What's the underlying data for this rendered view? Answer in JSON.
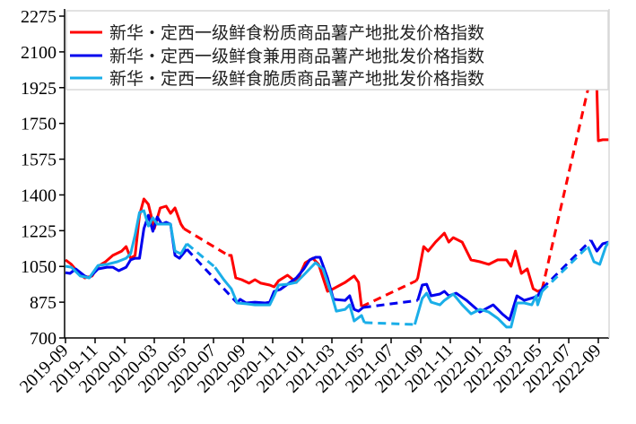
{
  "chart_data": {
    "type": "line",
    "title": "",
    "xlabel": "",
    "ylabel": "",
    "x_unit": "months since 2019-09",
    "xlim": [
      0,
      36.7
    ],
    "ylim": [
      700,
      2275
    ],
    "yticks": [
      700,
      875,
      1050,
      1225,
      1400,
      1575,
      1750,
      1925,
      2100,
      2275
    ],
    "xtick_labels": [
      "2019-09",
      "2019-11",
      "2020-01",
      "2020-03",
      "2020-05",
      "2020-07",
      "2020-09",
      "2020-11",
      "2021-01",
      "2021-03",
      "2021-05",
      "2021-07",
      "2021-09",
      "2021-11",
      "2022-01",
      "2022-03",
      "2022-05",
      "2022-07",
      "2022-09"
    ],
    "grid": false,
    "legend_position": "top",
    "dashed_note": "point triple [x, value, dashed]: dashed=1 means the segment from the previous point is dashed (missing data interpolation)",
    "series": [
      {
        "name": "新华・定西一级鲜食粉质商品薯产地批发价格指数",
        "color": "#ff0000",
        "points": [
          [
            0,
            1082,
            0
          ],
          [
            0.4,
            1060,
            0
          ],
          [
            0.9,
            1016,
            0
          ],
          [
            1.3,
            994,
            0
          ],
          [
            1.8,
            1003,
            0
          ],
          [
            2.2,
            1051,
            0
          ],
          [
            2.7,
            1073,
            0
          ],
          [
            3.2,
            1104,
            0
          ],
          [
            3.8,
            1125,
            0
          ],
          [
            4.1,
            1147,
            0
          ],
          [
            4.4,
            1090,
            0
          ],
          [
            4.7,
            1104,
            0
          ],
          [
            5.0,
            1300,
            0
          ],
          [
            5.3,
            1380,
            0
          ],
          [
            5.6,
            1354,
            0
          ],
          [
            6.0,
            1235,
            0
          ],
          [
            6.4,
            1336,
            0
          ],
          [
            6.8,
            1345,
            0
          ],
          [
            7.1,
            1310,
            0
          ],
          [
            7.4,
            1336,
            0
          ],
          [
            7.8,
            1257,
            0
          ],
          [
            8.0,
            1235,
            0
          ],
          [
            11.0,
            1104,
            1
          ],
          [
            11.2,
            1104,
            0
          ],
          [
            11.5,
            994,
            0
          ],
          [
            11.9,
            985,
            0
          ],
          [
            12.4,
            968,
            0
          ],
          [
            12.8,
            985,
            0
          ],
          [
            13.2,
            968,
            0
          ],
          [
            13.8,
            959,
            0
          ],
          [
            14.1,
            950,
            0
          ],
          [
            14.4,
            980,
            0
          ],
          [
            15.0,
            1007,
            0
          ],
          [
            15.6,
            972,
            0
          ],
          [
            16.2,
            1068,
            0
          ],
          [
            16.7,
            1090,
            0
          ],
          [
            17.1,
            1060,
            0
          ],
          [
            17.7,
            928,
            0
          ],
          [
            18.1,
            941,
            0
          ],
          [
            18.9,
            972,
            0
          ],
          [
            19.5,
            1003,
            0
          ],
          [
            19.8,
            972,
            0
          ],
          [
            20.0,
            853,
            0
          ],
          [
            23.7,
            980,
            1
          ],
          [
            23.8,
            994,
            0
          ],
          [
            24.2,
            1147,
            0
          ],
          [
            24.5,
            1125,
            0
          ],
          [
            25.0,
            1169,
            0
          ],
          [
            25.6,
            1213,
            0
          ],
          [
            25.9,
            1169,
            0
          ],
          [
            26.2,
            1191,
            0
          ],
          [
            26.8,
            1169,
            0
          ],
          [
            27.4,
            1082,
            0
          ],
          [
            28.0,
            1073,
            0
          ],
          [
            28.6,
            1060,
            0
          ],
          [
            29.2,
            1082,
            0
          ],
          [
            29.8,
            1082,
            0
          ],
          [
            30.1,
            1051,
            0
          ],
          [
            30.4,
            1125,
            0
          ],
          [
            30.8,
            1016,
            0
          ],
          [
            31.2,
            1038,
            0
          ],
          [
            31.6,
            941,
            0
          ],
          [
            31.9,
            928,
            0
          ],
          [
            32.2,
            937,
            0
          ],
          [
            35.6,
            2012,
            1
          ],
          [
            35.9,
            1915,
            0
          ],
          [
            36.0,
            1665,
            0
          ],
          [
            36.3,
            1670,
            0
          ],
          [
            36.7,
            1670,
            0
          ]
        ]
      },
      {
        "name": "新华・定西一级鲜食兼用商品薯产地批发价格指数",
        "color": "#0000ee",
        "points": [
          [
            0,
            1020,
            0
          ],
          [
            0.3,
            1016,
            0
          ],
          [
            0.7,
            1038,
            0
          ],
          [
            1.3,
            1003,
            0
          ],
          [
            1.6,
            994,
            0
          ],
          [
            2.2,
            1038,
            0
          ],
          [
            2.8,
            1046,
            0
          ],
          [
            3.2,
            1046,
            0
          ],
          [
            3.6,
            1029,
            0
          ],
          [
            4.1,
            1046,
            0
          ],
          [
            4.4,
            1082,
            0
          ],
          [
            4.7,
            1090,
            0
          ],
          [
            5.0,
            1090,
            0
          ],
          [
            5.3,
            1235,
            0
          ],
          [
            5.6,
            1300,
            0
          ],
          [
            5.9,
            1222,
            0
          ],
          [
            6.2,
            1292,
            0
          ],
          [
            6.5,
            1257,
            0
          ],
          [
            6.8,
            1266,
            0
          ],
          [
            7.1,
            1257,
            0
          ],
          [
            7.4,
            1104,
            0
          ],
          [
            7.7,
            1090,
            0
          ],
          [
            8.2,
            1134,
            0
          ],
          [
            11.6,
            871,
            1
          ],
          [
            11.8,
            889,
            0
          ],
          [
            12.2,
            871,
            0
          ],
          [
            12.8,
            875,
            0
          ],
          [
            13.5,
            871,
            0
          ],
          [
            13.8,
            875,
            0
          ],
          [
            14.1,
            928,
            0
          ],
          [
            14.5,
            937,
            0
          ],
          [
            15.0,
            963,
            0
          ],
          [
            15.6,
            994,
            0
          ],
          [
            16.1,
            1038,
            0
          ],
          [
            16.5,
            1082,
            0
          ],
          [
            16.9,
            1095,
            0
          ],
          [
            17.2,
            1095,
            0
          ],
          [
            17.7,
            994,
            0
          ],
          [
            18.1,
            889,
            0
          ],
          [
            18.9,
            884,
            0
          ],
          [
            19.2,
            906,
            0
          ],
          [
            19.5,
            840,
            0
          ],
          [
            19.8,
            831,
            0
          ],
          [
            20.1,
            849,
            0
          ],
          [
            23.8,
            884,
            1
          ],
          [
            24.1,
            959,
            0
          ],
          [
            24.4,
            963,
            0
          ],
          [
            24.7,
            906,
            0
          ],
          [
            25.3,
            915,
            0
          ],
          [
            25.6,
            928,
            0
          ],
          [
            25.9,
            906,
            0
          ],
          [
            26.4,
            919,
            0
          ],
          [
            27.1,
            884,
            0
          ],
          [
            28.0,
            827,
            0
          ],
          [
            28.9,
            862,
            0
          ],
          [
            29.5,
            818,
            0
          ],
          [
            30.0,
            788,
            0
          ],
          [
            30.5,
            906,
            0
          ],
          [
            31.0,
            884,
            0
          ],
          [
            31.6,
            897,
            0
          ],
          [
            31.9,
            906,
            0
          ],
          [
            32.2,
            941,
            0
          ],
          [
            35.5,
            1178,
            1
          ],
          [
            35.9,
            1125,
            0
          ],
          [
            36.3,
            1161,
            0
          ],
          [
            36.7,
            1169,
            0
          ]
        ]
      },
      {
        "name": "新华・定西一级鲜食脆质商品薯产地批发价格指数",
        "color": "#1aaee8",
        "points": [
          [
            0,
            1051,
            0
          ],
          [
            0.4,
            1046,
            0
          ],
          [
            1.0,
            1003,
            0
          ],
          [
            1.6,
            994,
            0
          ],
          [
            2.2,
            1055,
            0
          ],
          [
            2.8,
            1060,
            0
          ],
          [
            3.5,
            1073,
            0
          ],
          [
            4.1,
            1090,
            0
          ],
          [
            4.4,
            1112,
            0
          ],
          [
            4.7,
            1204,
            0
          ],
          [
            5.0,
            1314,
            0
          ],
          [
            5.3,
            1323,
            0
          ],
          [
            5.6,
            1248,
            0
          ],
          [
            5.9,
            1288,
            0
          ],
          [
            6.2,
            1257,
            0
          ],
          [
            6.5,
            1257,
            0
          ],
          [
            7.1,
            1257,
            0
          ],
          [
            7.4,
            1125,
            0
          ],
          [
            7.8,
            1112,
            0
          ],
          [
            8.2,
            1161,
            0
          ],
          [
            10.1,
            1046,
            1
          ],
          [
            10.7,
            985,
            0
          ],
          [
            11.2,
            941,
            0
          ],
          [
            11.6,
            871,
            0
          ],
          [
            12.2,
            867,
            0
          ],
          [
            12.8,
            862,
            0
          ],
          [
            13.8,
            862,
            0
          ],
          [
            14.1,
            906,
            0
          ],
          [
            14.4,
            959,
            0
          ],
          [
            15.0,
            963,
            0
          ],
          [
            15.6,
            972,
            0
          ],
          [
            16.2,
            1016,
            0
          ],
          [
            16.9,
            1068,
            0
          ],
          [
            17.4,
            1038,
            0
          ],
          [
            18.0,
            906,
            0
          ],
          [
            18.3,
            831,
            0
          ],
          [
            18.9,
            840,
            0
          ],
          [
            19.2,
            862,
            0
          ],
          [
            19.5,
            783,
            0
          ],
          [
            20.0,
            810,
            0
          ],
          [
            20.2,
            775,
            0
          ],
          [
            23.6,
            766,
            1
          ],
          [
            24.1,
            893,
            0
          ],
          [
            24.4,
            919,
            0
          ],
          [
            24.7,
            875,
            0
          ],
          [
            25.3,
            862,
            0
          ],
          [
            25.6,
            884,
            0
          ],
          [
            26.2,
            915,
            0
          ],
          [
            26.8,
            862,
            0
          ],
          [
            27.4,
            818,
            0
          ],
          [
            28.0,
            840,
            0
          ],
          [
            28.6,
            827,
            0
          ],
          [
            29.2,
            796,
            0
          ],
          [
            29.8,
            753,
            0
          ],
          [
            30.1,
            753,
            0
          ],
          [
            30.5,
            871,
            0
          ],
          [
            31.0,
            871,
            0
          ],
          [
            31.5,
            862,
            0
          ],
          [
            31.8,
            906,
            0
          ],
          [
            31.9,
            862,
            0
          ],
          [
            32.2,
            928,
            0
          ],
          [
            35.3,
            1147,
            1
          ],
          [
            35.7,
            1073,
            0
          ],
          [
            36.1,
            1060,
            0
          ],
          [
            36.5,
            1147,
            0
          ],
          [
            36.7,
            1169,
            0
          ]
        ]
      }
    ]
  }
}
